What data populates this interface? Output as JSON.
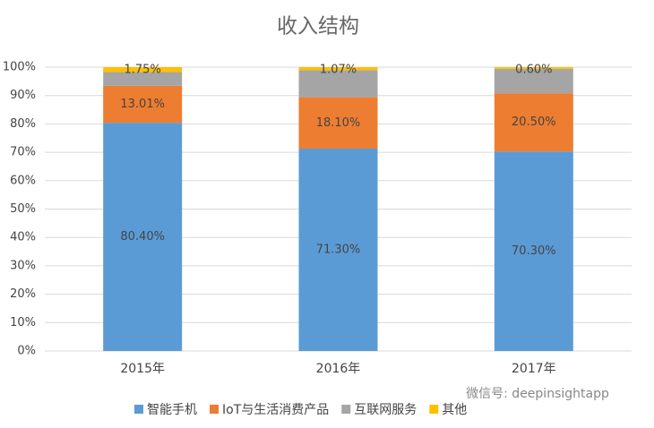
{
  "chart_data": {
    "type": "stacked_bar",
    "title": "收入结构",
    "categories": [
      "2015年",
      "2016年",
      "2017年"
    ],
    "series": [
      {
        "name": "智能手机",
        "color": "#5b9bd5",
        "values": [
          80.4,
          71.3,
          70.3
        ],
        "value_labels": [
          "80.40%",
          "71.30%",
          "70.30%"
        ]
      },
      {
        "name": "IoT与生活消费产品",
        "color": "#ed7d31",
        "values": [
          13.01,
          18.1,
          20.5
        ],
        "value_labels": [
          "13.01%",
          "18.10%",
          "20.50%"
        ]
      },
      {
        "name": "互联网服务",
        "color": "#a5a5a5",
        "values": [
          4.84,
          9.53,
          8.6
        ],
        "value_labels": [
          null,
          null,
          null
        ]
      },
      {
        "name": "其他",
        "color": "#ffc000",
        "values": [
          1.75,
          1.07,
          0.6
        ],
        "value_labels": [
          "1.75%",
          "1.07%",
          "0.60%"
        ]
      }
    ],
    "ylim": [
      0,
      100
    ],
    "yticks": [
      {
        "value": 0,
        "label": "0%"
      },
      {
        "value": 10,
        "label": "10%"
      },
      {
        "value": 20,
        "label": "20%"
      },
      {
        "value": 30,
        "label": "30%"
      },
      {
        "value": 40,
        "label": "40%"
      },
      {
        "value": 50,
        "label": "50%"
      },
      {
        "value": 60,
        "label": "60%"
      },
      {
        "value": 70,
        "label": "70%"
      },
      {
        "value": 80,
        "label": "80%"
      },
      {
        "value": 90,
        "label": "90%"
      },
      {
        "value": 100,
        "label": "100%"
      }
    ],
    "grid": true,
    "watermark": "微信号: deepinsightapp"
  }
}
